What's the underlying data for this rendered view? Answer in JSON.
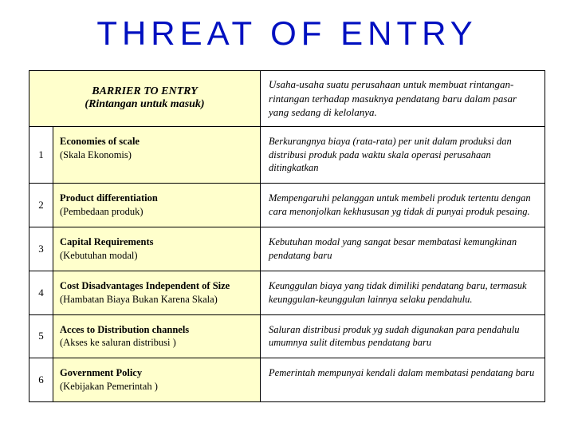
{
  "title": "THREAT OF ENTRY",
  "title_color": "#0010c0",
  "header": {
    "left_line1": "BARRIER  TO  ENTRY",
    "left_line2": "(Rintangan untuk masuk)",
    "right": "Usaha-usaha suatu perusahaan untuk membuat rintangan-rintangan terhadap masuknya pendatang baru dalam pasar yang sedang di kelolanya."
  },
  "highlight_bg": "#ffffcc",
  "border_color": "#000000",
  "rows": [
    {
      "num": "1",
      "left_bold": "Economies of scale",
      "left_sub": "(Skala Ekonomis)",
      "right": "Berkurangnya biaya (rata-rata) per unit dalam produksi dan distribusi produk pada waktu skala operasi perusahaan ditingkatkan"
    },
    {
      "num": "2",
      "left_bold": "Product differentiation",
      "left_sub": "(Pembedaan produk)",
      "right": "Mempengaruhi pelanggan untuk membeli produk tertentu dengan cara menonjolkan kekhususan yg tidak di punyai produk pesaing."
    },
    {
      "num": "3",
      "left_bold": "Capital Requirements",
      "left_sub": "(Kebutuhan modal)",
      "right": "Kebutuhan modal yang sangat besar membatasi kemungkinan pendatang baru"
    },
    {
      "num": "4",
      "left_bold": "Cost Disadvantages Independent of Size",
      "left_sub": "(Hambatan Biaya Bukan Karena Skala)",
      "right": "Keunggulan biaya yang tidak dimiliki pendatang baru, termasuk keunggulan-keunggulan lainnya selaku pendahulu."
    },
    {
      "num": "5",
      "left_bold": "Acces to Distribution channels",
      "left_sub": "(Akses ke saluran distribusi )",
      "right": "Saluran distribusi produk yg sudah digunakan para pendahulu umumnya sulit ditembus pendatang baru"
    },
    {
      "num": "6",
      "left_bold": "Government Policy",
      "left_sub": "(Kebijakan Pemerintah )",
      "right": "Pemerintah mempunyai kendali dalam membatasi pendatang baru"
    }
  ]
}
